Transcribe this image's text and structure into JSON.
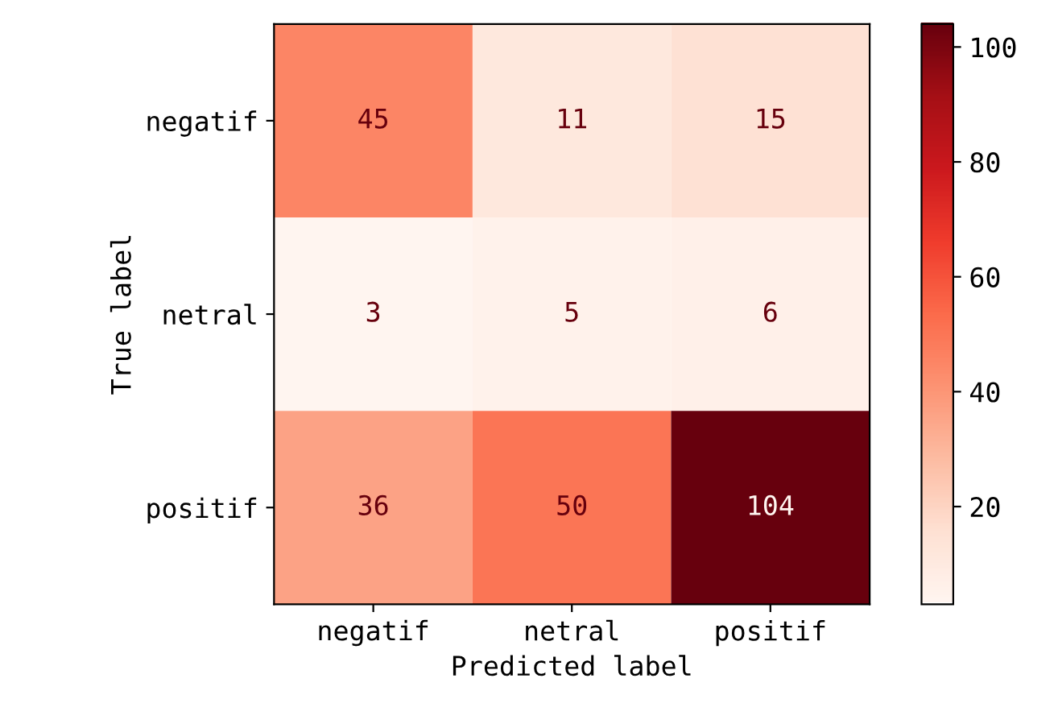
{
  "chart_data": {
    "type": "heatmap",
    "xlabel": "Predicted label",
    "ylabel": "True label",
    "categories": [
      "negatif",
      "netral",
      "positif"
    ],
    "y_categories": [
      "negatif",
      "netral",
      "positif"
    ],
    "cells": [
      [
        45,
        11,
        15
      ],
      [
        3,
        5,
        6
      ],
      [
        36,
        50,
        104
      ]
    ],
    "clim": [
      3,
      104
    ],
    "cticks": [
      20,
      40,
      60,
      80,
      100
    ],
    "data_labels": true,
    "grid": false
  }
}
